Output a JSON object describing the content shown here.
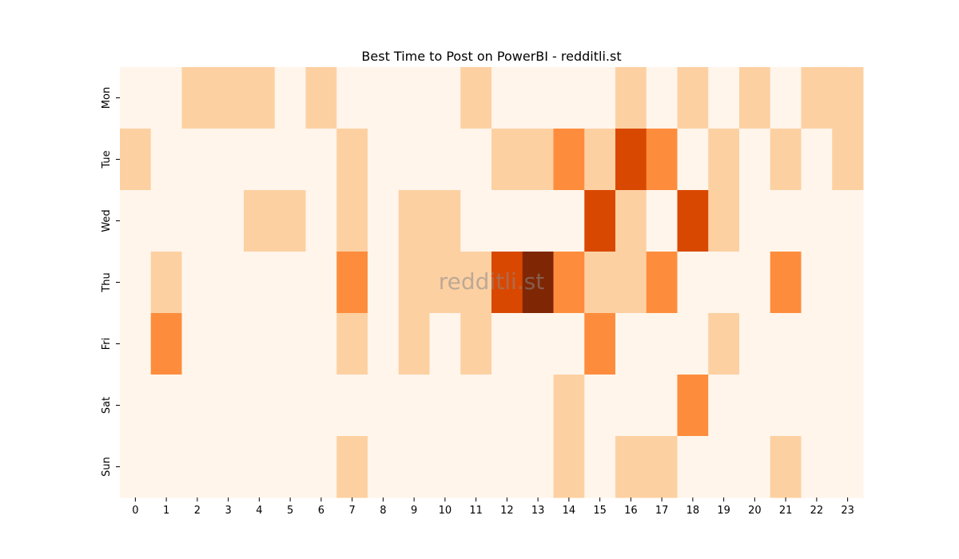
{
  "chart_data": {
    "type": "heatmap",
    "title": "Best Time to Post on PowerBI - redditli.st",
    "watermark": "redditli.st",
    "x_labels": [
      "0",
      "1",
      "2",
      "3",
      "4",
      "5",
      "6",
      "7",
      "8",
      "9",
      "10",
      "11",
      "12",
      "13",
      "14",
      "15",
      "16",
      "17",
      "18",
      "19",
      "20",
      "21",
      "22",
      "23"
    ],
    "y_labels": [
      "Mon",
      "Tue",
      "Wed",
      "Thu",
      "Fri",
      "Sat",
      "Sun"
    ],
    "values": [
      [
        0,
        0,
        1,
        1,
        1,
        0,
        1,
        0,
        0,
        0,
        0,
        1,
        0,
        0,
        0,
        0,
        1,
        0,
        1,
        0,
        1,
        0,
        1,
        1
      ],
      [
        1,
        0,
        0,
        0,
        0,
        0,
        0,
        1,
        0,
        0,
        0,
        0,
        1,
        1,
        2,
        1,
        3,
        2,
        0,
        1,
        0,
        1,
        0,
        1
      ],
      [
        0,
        0,
        0,
        0,
        1,
        1,
        0,
        1,
        0,
        1,
        1,
        0,
        0,
        0,
        0,
        3,
        1,
        0,
        3,
        1,
        0,
        0,
        0,
        0
      ],
      [
        0,
        1,
        0,
        0,
        0,
        0,
        0,
        2,
        0,
        1,
        1,
        1,
        3,
        4,
        2,
        1,
        1,
        2,
        0,
        0,
        0,
        2,
        0,
        0
      ],
      [
        0,
        2,
        0,
        0,
        0,
        0,
        0,
        1,
        0,
        1,
        0,
        1,
        0,
        0,
        0,
        2,
        0,
        0,
        0,
        1,
        0,
        0,
        0,
        0
      ],
      [
        0,
        0,
        0,
        0,
        0,
        0,
        0,
        0,
        0,
        0,
        0,
        0,
        0,
        0,
        1,
        0,
        0,
        0,
        2,
        0,
        0,
        0,
        0,
        0
      ],
      [
        0,
        0,
        0,
        0,
        0,
        0,
        0,
        1,
        0,
        0,
        0,
        0,
        0,
        0,
        1,
        0,
        1,
        1,
        0,
        0,
        0,
        1,
        0,
        0
      ]
    ],
    "colorscale": [
      "#fff5eb",
      "#fdd0a2",
      "#fd8d3c",
      "#d94801",
      "#7f2704"
    ],
    "colorbar": false,
    "grid": false
  }
}
